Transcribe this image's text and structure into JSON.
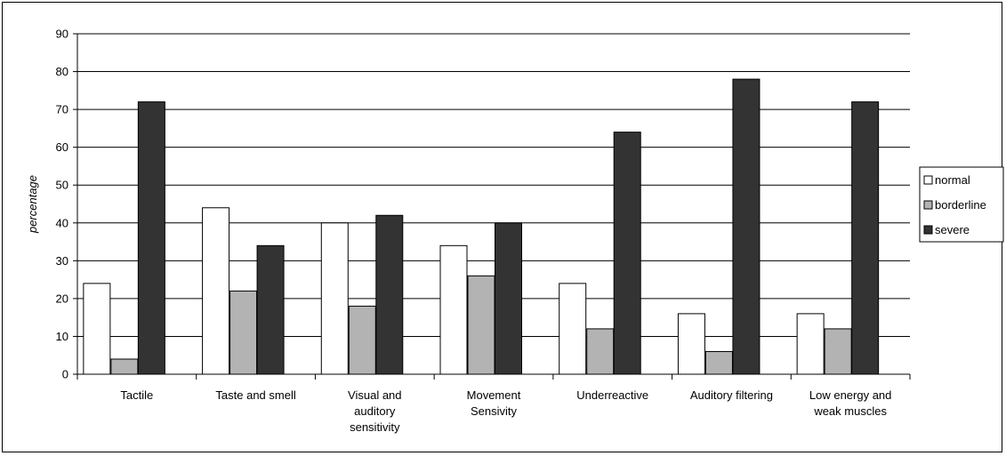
{
  "chart_data": {
    "type": "bar",
    "ylabel": "percentage",
    "ylim": [
      0,
      90
    ],
    "yticks": [
      0,
      10,
      20,
      30,
      40,
      50,
      60,
      70,
      80,
      90
    ],
    "grid": true,
    "legend_position": "right",
    "categories": [
      [
        "Tactile"
      ],
      [
        "Taste and smell"
      ],
      [
        "Visual and",
        "auditory",
        "sensitivity"
      ],
      [
        "Movement",
        "Sensivity"
      ],
      [
        "Underreactive"
      ],
      [
        "Auditory filtering"
      ],
      [
        "Low energy and",
        "weak muscles"
      ]
    ],
    "series": [
      {
        "name": "normal",
        "color": "#ffffff",
        "values": [
          24,
          44,
          40,
          34,
          24,
          16,
          16
        ]
      },
      {
        "name": "borderline",
        "color": "#b3b3b3",
        "values": [
          4,
          22,
          18,
          26,
          12,
          6,
          12
        ]
      },
      {
        "name": "severe",
        "color": "#333333",
        "values": [
          72,
          34,
          42,
          40,
          64,
          78,
          72
        ]
      }
    ]
  }
}
